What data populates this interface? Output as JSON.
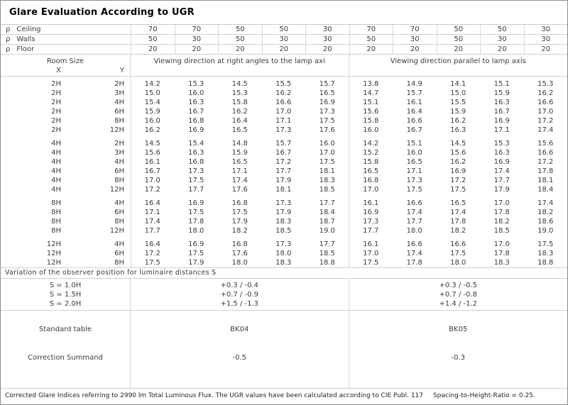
{
  "title": "Glare Evaluation According to UGR",
  "reflectance_rows": [
    {
      "symbol": "ρ",
      "name": "Ceiling",
      "values": [
        "70",
        "70",
        "50",
        "50",
        "30",
        "70",
        "70",
        "50",
        "50",
        "30"
      ]
    },
    {
      "symbol": "ρ",
      "name": "Walls",
      "values": [
        "50",
        "30",
        "50",
        "30",
        "30",
        "50",
        "30",
        "50",
        "30",
        "30"
      ]
    },
    {
      "symbol": "ρ",
      "name": "Floor",
      "values": [
        "20",
        "20",
        "20",
        "20",
        "20",
        "20",
        "20",
        "20",
        "20",
        "20"
      ]
    }
  ],
  "header": {
    "room_size": "Room Size",
    "x": "X",
    "y": "Y",
    "left_group": "Viewing direction at right angles to the lamp axi",
    "right_group": "Viewing direction parallel to lamp axis"
  },
  "ugr_blocks": [
    {
      "rows": [
        {
          "x": "2H",
          "y": "2H",
          "left": [
            "14.2",
            "15.3",
            "14.5",
            "15.5",
            "15.7"
          ],
          "right": [
            "13.8",
            "14.9",
            "14.1",
            "15.1",
            "15.3"
          ]
        },
        {
          "x": "2H",
          "y": "3H",
          "left": [
            "15.0",
            "16.0",
            "15.3",
            "16.2",
            "16.5"
          ],
          "right": [
            "14.7",
            "15.7",
            "15.0",
            "15.9",
            "16.2"
          ]
        },
        {
          "x": "2H",
          "y": "4H",
          "left": [
            "15.4",
            "16.3",
            "15.8",
            "16.6",
            "16.9"
          ],
          "right": [
            "15.1",
            "16.1",
            "15.5",
            "16.3",
            "16.6"
          ]
        },
        {
          "x": "2H",
          "y": "6H",
          "left": [
            "15.9",
            "16.7",
            "16.2",
            "17.0",
            "17.3"
          ],
          "right": [
            "15.6",
            "16.4",
            "15.9",
            "16.7",
            "17.0"
          ]
        },
        {
          "x": "2H",
          "y": "8H",
          "left": [
            "16.0",
            "16.8",
            "16.4",
            "17.1",
            "17.5"
          ],
          "right": [
            "15.8",
            "16.6",
            "16.2",
            "16.9",
            "17.2"
          ]
        },
        {
          "x": "2H",
          "y": "12H",
          "left": [
            "16.2",
            "16.9",
            "16.5",
            "17.3",
            "17.6"
          ],
          "right": [
            "16.0",
            "16.7",
            "16.3",
            "17.1",
            "17.4"
          ]
        }
      ]
    },
    {
      "rows": [
        {
          "x": "4H",
          "y": "2H",
          "left": [
            "14.5",
            "15.4",
            "14.8",
            "15.7",
            "16.0"
          ],
          "right": [
            "14.2",
            "15.1",
            "14.5",
            "15.3",
            "15.6"
          ]
        },
        {
          "x": "4H",
          "y": "3H",
          "left": [
            "15.6",
            "16.3",
            "15.9",
            "16.7",
            "17.0"
          ],
          "right": [
            "15.2",
            "16.0",
            "15.6",
            "16.3",
            "16.6"
          ]
        },
        {
          "x": "4H",
          "y": "4H",
          "left": [
            "16.1",
            "16.8",
            "16.5",
            "17.2",
            "17.5"
          ],
          "right": [
            "15.8",
            "16.5",
            "16.2",
            "16.9",
            "17.2"
          ]
        },
        {
          "x": "4H",
          "y": "6H",
          "left": [
            "16.7",
            "17.3",
            "17.1",
            "17.7",
            "18.1"
          ],
          "right": [
            "16.5",
            "17.1",
            "16.9",
            "17.4",
            "17.8"
          ]
        },
        {
          "x": "4H",
          "y": "8H",
          "left": [
            "17.0",
            "17.5",
            "17.4",
            "17.9",
            "18.3"
          ],
          "right": [
            "16.8",
            "17.3",
            "17.2",
            "17.7",
            "18.1"
          ]
        },
        {
          "x": "4H",
          "y": "12H",
          "left": [
            "17.2",
            "17.7",
            "17.6",
            "18.1",
            "18.5"
          ],
          "right": [
            "17.0",
            "17.5",
            "17.5",
            "17.9",
            "18.4"
          ]
        }
      ]
    },
    {
      "rows": [
        {
          "x": "8H",
          "y": "4H",
          "left": [
            "16.4",
            "16.9",
            "16.8",
            "17.3",
            "17.7"
          ],
          "right": [
            "16.1",
            "16.6",
            "16.5",
            "17.0",
            "17.4"
          ]
        },
        {
          "x": "8H",
          "y": "6H",
          "left": [
            "17.1",
            "17.5",
            "17.5",
            "17.9",
            "18.4"
          ],
          "right": [
            "16.9",
            "17.4",
            "17.4",
            "17.8",
            "18.2"
          ]
        },
        {
          "x": "8H",
          "y": "8H",
          "left": [
            "17.4",
            "17.8",
            "17.9",
            "18.3",
            "18.7"
          ],
          "right": [
            "17.3",
            "17.7",
            "17.8",
            "18.2",
            "18.6"
          ]
        },
        {
          "x": "8H",
          "y": "12H",
          "left": [
            "17.7",
            "18.0",
            "18.2",
            "18.5",
            "19.0"
          ],
          "right": [
            "17.7",
            "18.0",
            "18.2",
            "18.5",
            "19.0"
          ]
        }
      ]
    },
    {
      "rows": [
        {
          "x": "12H",
          "y": "4H",
          "left": [
            "16.4",
            "16.9",
            "16.8",
            "17.3",
            "17.7"
          ],
          "right": [
            "16.1",
            "16.6",
            "16.6",
            "17.0",
            "17.5"
          ]
        },
        {
          "x": "12H",
          "y": "6H",
          "left": [
            "17.2",
            "17.5",
            "17.6",
            "18.0",
            "18.5"
          ],
          "right": [
            "17.0",
            "17.4",
            "17.5",
            "17.8",
            "18.3"
          ]
        },
        {
          "x": "12H",
          "y": "8H",
          "left": [
            "17.5",
            "17.9",
            "18.0",
            "18.3",
            "18.8"
          ],
          "right": [
            "17.5",
            "17.8",
            "18.0",
            "18.3",
            "18.8"
          ]
        }
      ]
    }
  ],
  "variation": {
    "label": "Variation of the observer position for luminaire distances S",
    "rows": [
      {
        "s": "S = 1.0H",
        "left": "+0.3 / -0.4",
        "right": "+0.3 / -0.5"
      },
      {
        "s": "S = 1.5H",
        "left": "+0.7 / -0.9",
        "right": "+0.7 / -0.8"
      },
      {
        "s": "S = 2.0H",
        "left": "+1.5 / -1.3",
        "right": "+1.4 / -1.2"
      }
    ]
  },
  "summary": {
    "standard_table_label": "Standard table",
    "standard_table_left": "BK04",
    "standard_table_right": "BK05",
    "correction_label": "Correction Summand",
    "correction_left": "-0.5",
    "correction_right": "-0.3"
  },
  "footer": {
    "text1": "Corrected Glare Indices referring to 2990 lm Total Luminous Flux. The UGR values have been calculated according to CIE Publ. 117",
    "text2": "Spacing-to-Height-Ratio = 0.25."
  },
  "colors": {
    "background": "#ffffff",
    "outer_border": "#8e8e8e",
    "grid_border": "#d0d0d0",
    "text": "#3b3b3b",
    "title_text": "#000000"
  }
}
